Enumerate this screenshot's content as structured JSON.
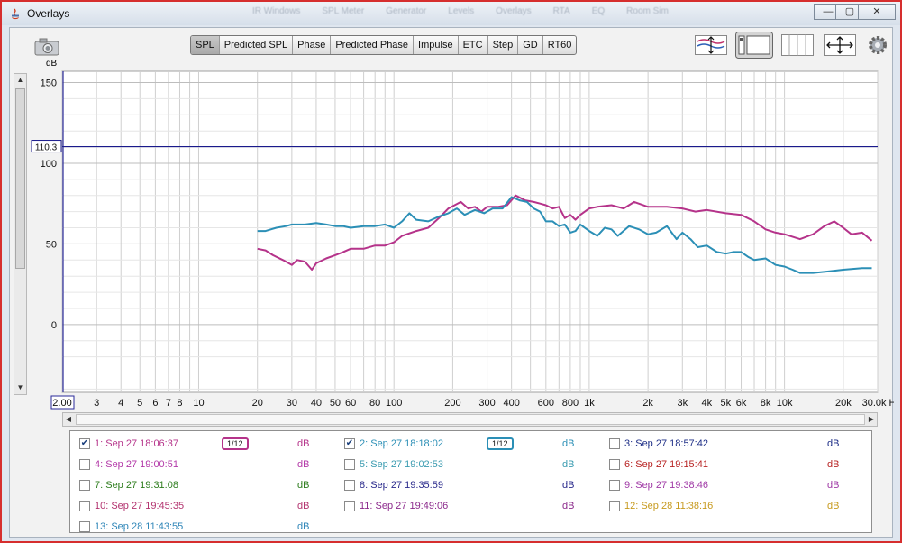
{
  "window": {
    "title": "Overlays",
    "ghost_menu": [
      "IR Windows",
      "SPL Meter",
      "Generator",
      "Levels",
      "Overlays",
      "RTA",
      "EQ",
      "Room Sim"
    ],
    "controls": {
      "minimize": "—",
      "maximize": "▢",
      "close": "✕"
    }
  },
  "toolbar": {
    "unit_label": "dB",
    "tabs": [
      {
        "label": "SPL",
        "active": true
      },
      {
        "label": "Predicted SPL",
        "active": false
      },
      {
        "label": "Phase",
        "active": false
      },
      {
        "label": "Predicted Phase",
        "active": false
      },
      {
        "label": "Impulse",
        "active": false
      },
      {
        "label": "ETC",
        "active": false
      },
      {
        "label": "Step",
        "active": false
      },
      {
        "label": "GD",
        "active": false
      },
      {
        "label": "RT60",
        "active": false
      }
    ],
    "icons": [
      "waterfall-icon",
      "trace-layout-icon",
      "panel-grid-icon",
      "fit-arrows-icon",
      "settings-gear-icon"
    ]
  },
  "chart_data": {
    "type": "line",
    "x_scale": "log",
    "xlim": [
      2,
      30000
    ],
    "ylim": [
      -42,
      157
    ],
    "grid": true,
    "y_tick_labels": [
      "150",
      "100",
      "50",
      "0"
    ],
    "y_ticks": [
      150,
      100,
      50,
      0
    ],
    "x_tick_labels": [
      "2.00",
      "3",
      "4",
      "5",
      "6",
      "7",
      "8",
      "10",
      "20",
      "30",
      "40",
      "50",
      "60",
      "80",
      "100",
      "200",
      "300",
      "400",
      "600",
      "800",
      "1k",
      "2k",
      "3k",
      "4k",
      "5k",
      "6k",
      "8k",
      "10k",
      "20k",
      "30.0k Hz"
    ],
    "x_ticks": [
      2,
      3,
      4,
      5,
      6,
      7,
      8,
      10,
      20,
      30,
      40,
      50,
      60,
      80,
      100,
      200,
      300,
      400,
      600,
      800,
      1000,
      2000,
      3000,
      4000,
      5000,
      6000,
      8000,
      10000,
      20000,
      30000
    ],
    "reference_line": {
      "value": 110.3,
      "label": "110.3",
      "color": "#1a1a8c"
    },
    "series": [
      {
        "name": "1: Sep 27 18:06:37",
        "color": "#b5338a",
        "points": [
          [
            20,
            47
          ],
          [
            22,
            46
          ],
          [
            24,
            43
          ],
          [
            27,
            40
          ],
          [
            30,
            37
          ],
          [
            32,
            40
          ],
          [
            35,
            39
          ],
          [
            38,
            34
          ],
          [
            40,
            38
          ],
          [
            45,
            41
          ],
          [
            50,
            43
          ],
          [
            55,
            45
          ],
          [
            60,
            47
          ],
          [
            70,
            47
          ],
          [
            80,
            49
          ],
          [
            90,
            49
          ],
          [
            100,
            51
          ],
          [
            110,
            55
          ],
          [
            130,
            58
          ],
          [
            150,
            60
          ],
          [
            170,
            66
          ],
          [
            190,
            72
          ],
          [
            220,
            76
          ],
          [
            240,
            72
          ],
          [
            260,
            73
          ],
          [
            280,
            70
          ],
          [
            300,
            73
          ],
          [
            340,
            73
          ],
          [
            380,
            74
          ],
          [
            420,
            80
          ],
          [
            470,
            77
          ],
          [
            520,
            76
          ],
          [
            560,
            75
          ],
          [
            600,
            74
          ],
          [
            650,
            72
          ],
          [
            700,
            73
          ],
          [
            750,
            66
          ],
          [
            800,
            68
          ],
          [
            850,
            65
          ],
          [
            900,
            68
          ],
          [
            1000,
            72
          ],
          [
            1100,
            73
          ],
          [
            1300,
            74
          ],
          [
            1500,
            72
          ],
          [
            1700,
            76
          ],
          [
            2000,
            73
          ],
          [
            2500,
            73
          ],
          [
            3000,
            72
          ],
          [
            3500,
            70
          ],
          [
            4000,
            71
          ],
          [
            5000,
            69
          ],
          [
            6000,
            68
          ],
          [
            7000,
            64
          ],
          [
            8000,
            59
          ],
          [
            9000,
            57
          ],
          [
            10000,
            56
          ],
          [
            12000,
            53
          ],
          [
            14000,
            56
          ],
          [
            16000,
            61
          ],
          [
            18000,
            64
          ],
          [
            20000,
            60
          ],
          [
            22000,
            56
          ],
          [
            25000,
            57
          ],
          [
            28000,
            52
          ]
        ]
      },
      {
        "name": "2: Sep 27 18:18:02",
        "color": "#2b8fb6",
        "points": [
          [
            20,
            58
          ],
          [
            22,
            58
          ],
          [
            25,
            60
          ],
          [
            28,
            61
          ],
          [
            30,
            62
          ],
          [
            35,
            62
          ],
          [
            40,
            63
          ],
          [
            45,
            62
          ],
          [
            50,
            61
          ],
          [
            55,
            61
          ],
          [
            60,
            60
          ],
          [
            70,
            61
          ],
          [
            80,
            61
          ],
          [
            90,
            62
          ],
          [
            100,
            60
          ],
          [
            110,
            64
          ],
          [
            120,
            69
          ],
          [
            130,
            65
          ],
          [
            150,
            64
          ],
          [
            170,
            67
          ],
          [
            190,
            69
          ],
          [
            210,
            72
          ],
          [
            230,
            68
          ],
          [
            260,
            71
          ],
          [
            290,
            69
          ],
          [
            320,
            72
          ],
          [
            360,
            72
          ],
          [
            400,
            79
          ],
          [
            440,
            77
          ],
          [
            480,
            76
          ],
          [
            520,
            72
          ],
          [
            560,
            70
          ],
          [
            600,
            64
          ],
          [
            650,
            64
          ],
          [
            700,
            61
          ],
          [
            750,
            62
          ],
          [
            800,
            57
          ],
          [
            850,
            58
          ],
          [
            900,
            62
          ],
          [
            1000,
            58
          ],
          [
            1100,
            55
          ],
          [
            1200,
            60
          ],
          [
            1300,
            59
          ],
          [
            1400,
            55
          ],
          [
            1600,
            61
          ],
          [
            1800,
            59
          ],
          [
            2000,
            56
          ],
          [
            2200,
            57
          ],
          [
            2500,
            61
          ],
          [
            2800,
            53
          ],
          [
            3000,
            57
          ],
          [
            3300,
            53
          ],
          [
            3600,
            48
          ],
          [
            4000,
            49
          ],
          [
            4500,
            45
          ],
          [
            5000,
            44
          ],
          [
            5500,
            45
          ],
          [
            6000,
            45
          ],
          [
            6500,
            42
          ],
          [
            7000,
            40
          ],
          [
            8000,
            41
          ],
          [
            9000,
            37
          ],
          [
            10000,
            36
          ],
          [
            11000,
            34
          ],
          [
            12000,
            32
          ],
          [
            14000,
            32
          ],
          [
            17000,
            33
          ],
          [
            20000,
            34
          ],
          [
            25000,
            35
          ],
          [
            28000,
            35
          ]
        ]
      }
    ]
  },
  "legend": {
    "items": [
      {
        "label": "1: Sep 27 18:06:37",
        "checked": true,
        "color": "#b5338a",
        "smoothing": "1/12",
        "unit": "dB"
      },
      {
        "label": "2: Sep 27 18:18:02",
        "checked": true,
        "color": "#2b8fb6",
        "smoothing": "1/12",
        "unit": "dB"
      },
      {
        "label": "3: Sep 27 18:57:42",
        "checked": false,
        "color": "#1c2d86",
        "smoothing": "",
        "unit": "dB"
      },
      {
        "label": "4: Sep 27 19:00:51",
        "checked": false,
        "color": "#b338a8",
        "smoothing": "",
        "unit": "dB"
      },
      {
        "label": "5: Sep 27 19:02:53",
        "checked": false,
        "color": "#3a9bb0",
        "smoothing": "",
        "unit": "dB"
      },
      {
        "label": "6: Sep 27 19:15:41",
        "checked": false,
        "color": "#b82424",
        "smoothing": "",
        "unit": "dB"
      },
      {
        "label": "7: Sep 27 19:31:08",
        "checked": false,
        "color": "#2e7d1e",
        "smoothing": "",
        "unit": "dB"
      },
      {
        "label": "8: Sep 27 19:35:59",
        "checked": false,
        "color": "#2a2a8c",
        "smoothing": "",
        "unit": "dB"
      },
      {
        "label": "9: Sep 27 19:38:46",
        "checked": false,
        "color": "#a03aa6",
        "smoothing": "",
        "unit": "dB"
      },
      {
        "label": "10: Sep 27 19:45:35",
        "checked": false,
        "color": "#b3336f",
        "smoothing": "",
        "unit": "dB"
      },
      {
        "label": "11: Sep 27 19:49:06",
        "checked": false,
        "color": "#8c2a8c",
        "smoothing": "",
        "unit": "dB"
      },
      {
        "label": "12: Sep 28 11:38:16",
        "checked": false,
        "color": "#c79a1e",
        "smoothing": "",
        "unit": "dB"
      },
      {
        "label": "13: Sep 28 11:43:55",
        "checked": false,
        "color": "#2f86b8",
        "smoothing": "",
        "unit": "dB"
      }
    ]
  }
}
